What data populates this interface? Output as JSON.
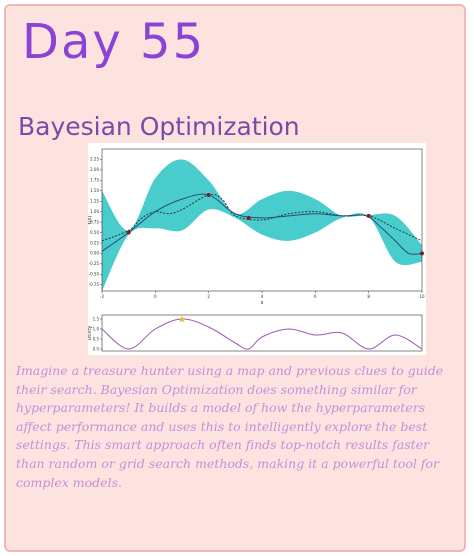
{
  "header": {
    "day": "Day 55",
    "topic": "Bayesian Optimization"
  },
  "chart_data": [
    {
      "type": "line",
      "xlabel": "x",
      "ylabel": "f(x)",
      "xlim": [
        -2,
        10
      ],
      "ylim": [
        -0.9,
        2.5
      ],
      "xticks": [
        "-2",
        "0",
        "2",
        "4",
        "6",
        "8",
        "10"
      ],
      "yticks": [
        "2.25",
        "2.00",
        "1.75",
        "1.50",
        "1.25",
        "1.00",
        "0.75",
        "0.50",
        "0.25",
        "0.00",
        "-0.25",
        "-0.50",
        "-0.75"
      ],
      "band_color": "#34c6c6",
      "series": [
        {
          "x": [
            -2,
            -1,
            -0.5,
            0,
            0.5,
            1,
            2,
            2.5,
            3,
            4,
            5,
            6,
            7,
            8,
            9,
            10
          ],
          "values": [
            0.3,
            0.55,
            0.85,
            1.0,
            0.95,
            1.05,
            1.4,
            1.3,
            0.9,
            0.8,
            0.95,
            1.0,
            0.9,
            0.9,
            0.6,
            0.3
          ]
        },
        {
          "x": [
            -2,
            -1,
            0,
            1,
            2,
            3,
            4,
            5,
            6,
            7,
            7.9,
            8.5,
            9,
            9.5,
            10
          ],
          "values": [
            0.05,
            0.5,
            1.0,
            1.3,
            1.4,
            0.95,
            0.85,
            0.9,
            0.95,
            0.9,
            0.9,
            0.6,
            0.3,
            0.0,
            0.0
          ]
        }
      ],
      "band": {
        "x": [
          -2,
          -1,
          0,
          1,
          2,
          3,
          4,
          5,
          6,
          7,
          8,
          9,
          10
        ],
        "upper": [
          1.5,
          0.55,
          1.8,
          2.25,
          1.75,
          0.95,
          1.3,
          1.5,
          1.3,
          0.9,
          0.92,
          0.9,
          0.2
        ],
        "lower": [
          -0.9,
          0.45,
          0.6,
          0.55,
          1.05,
          0.85,
          0.45,
          0.3,
          0.5,
          0.85,
          0.88,
          -0.2,
          -0.2
        ]
      },
      "observations": {
        "x": [
          -1,
          2,
          3.5,
          8,
          10
        ],
        "values": [
          0.5,
          1.4,
          0.85,
          0.9,
          0.0
        ]
      }
    },
    {
      "type": "line",
      "xlabel": "",
      "ylabel": "Utility",
      "xlim": [
        -2,
        10
      ],
      "ylim": [
        -0.1,
        1.7
      ],
      "yticks": [
        "1.5",
        "1.0",
        "0.5",
        "0.0"
      ],
      "series": [
        {
          "x": [
            -2,
            -1,
            0,
            1,
            2,
            3,
            3.5,
            4,
            5,
            6,
            7,
            8,
            9,
            10
          ],
          "values": [
            1.0,
            0.0,
            1.0,
            1.5,
            1.1,
            0.3,
            0.0,
            0.6,
            1.0,
            0.7,
            0.8,
            0.0,
            0.7,
            0.0
          ]
        }
      ],
      "line_color": "#9b59b6",
      "marker": {
        "x": 1,
        "value": 1.5,
        "color": "#f1c232"
      }
    }
  ],
  "body": {
    "text": "Imagine a treasure hunter using a map and previous clues to guide their search. Bayesian Optimization does something similar for hyperparameters! It builds a model of how the hyperparameters affect performance and uses this to intelligently explore the best settings. This smart approach often finds top-notch results faster than random or grid search methods, making it a powerful tool for complex models."
  }
}
